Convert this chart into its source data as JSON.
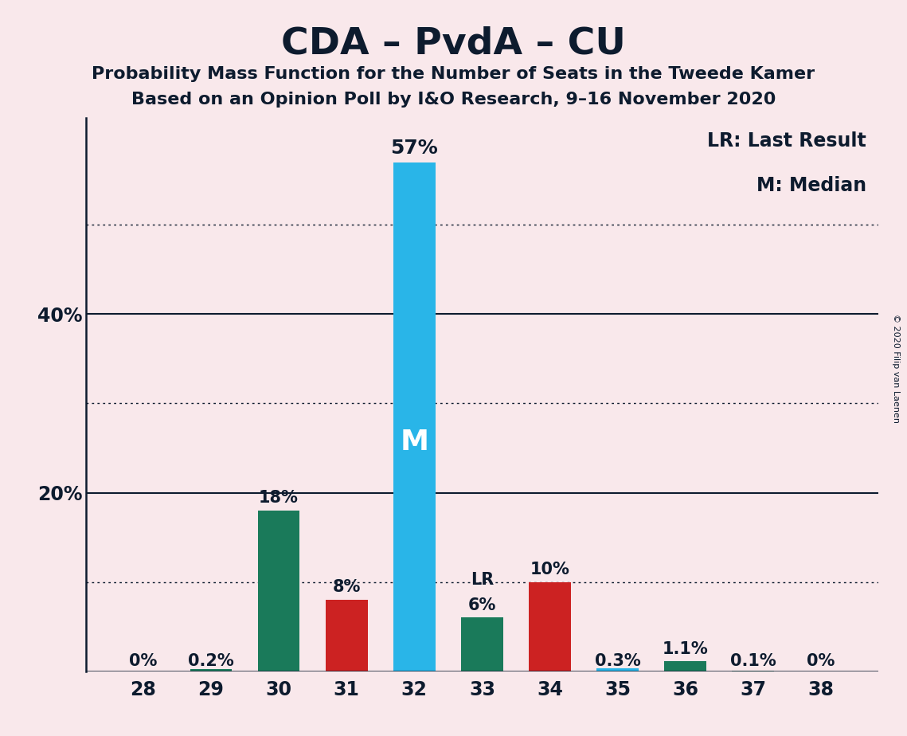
{
  "title": "CDA – PvdA – CU",
  "subtitle1": "Probability Mass Function for the Number of Seats in the Tweede Kamer",
  "subtitle2": "Based on an Opinion Poll by I&O Research, 9–16 November 2020",
  "copyright": "© 2020 Filip van Laenen",
  "categories": [
    28,
    29,
    30,
    31,
    32,
    33,
    34,
    35,
    36,
    37,
    38
  ],
  "values": [
    0,
    0.2,
    18,
    8,
    57,
    6,
    10,
    0.3,
    1.1,
    0.1,
    0
  ],
  "labels": [
    "0%",
    "0.2%",
    "18%",
    "8%",
    "57%",
    "6%",
    "10%",
    "0.3%",
    "1.1%",
    "0.1%",
    "0%"
  ],
  "colors": [
    "#1a7a5a",
    "#1a7a5a",
    "#1a7a5a",
    "#cc2222",
    "#29b5e8",
    "#1a7a5a",
    "#cc2222",
    "#29b5e8",
    "#1a7a5a",
    "#1a7a5a",
    "#1a7a5a"
  ],
  "median_bar_idx": 4,
  "lr_bar_idx": 5,
  "background_color": "#f9e8eb",
  "legend_lr": "LR: Last Result",
  "legend_m": "M: Median",
  "solid_yticks": [
    0,
    20,
    40
  ],
  "solid_ytick_labels": [
    "",
    "20%",
    "40%"
  ],
  "dotted_lines": [
    10,
    30,
    50
  ],
  "ymax": 62,
  "title_fontsize": 34,
  "subtitle_fontsize": 16,
  "label_fontsize": 15,
  "axis_fontsize": 17,
  "legend_fontsize": 17,
  "copyright_fontsize": 8,
  "text_color": "#0d1b2e",
  "m_label_fontsize": 26,
  "lr_label_fontsize": 15
}
